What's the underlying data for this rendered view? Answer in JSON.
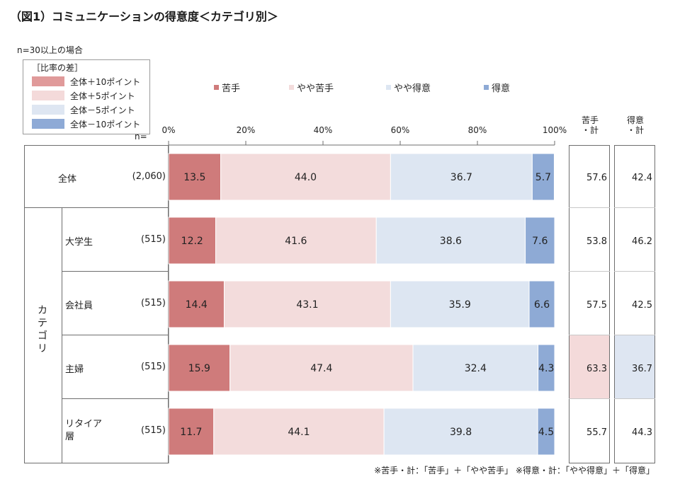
{
  "title": "（図1）コミュニケーションの得意度＜カテゴリ別＞",
  "subtitle": "n=30以上の場合",
  "diff_legend": {
    "header": "［比率の差］",
    "items": [
      {
        "label": "全体＋10ポイント",
        "color": "#e09a9a"
      },
      {
        "label": "全体＋5ポイント",
        "color": "#f4dada"
      },
      {
        "label": "全体－5ポイント",
        "color": "#dee6f2"
      },
      {
        "label": "全体－10ポイント",
        "color": "#8eaad6"
      }
    ]
  },
  "n_header": "n=",
  "sum_headers": {
    "weak": "苦手\n・計",
    "good": "得意\n・計"
  },
  "category_group_label": "カテゴリ",
  "footnote": "※苦手・計：「苦手」＋「やや苦手」 ※得意・計：「やや得意」＋「得意」",
  "chart_data": {
    "type": "bar",
    "orientation": "horizontal",
    "stacked": "percent",
    "xlim": [
      0,
      100
    ],
    "x_ticks": [
      "0%",
      "20%",
      "40%",
      "60%",
      "80%",
      "100%"
    ],
    "legend_position": "top",
    "series": [
      {
        "name": "苦手",
        "color": "#cf7b7b",
        "values": [
          13.5,
          12.2,
          14.4,
          15.9,
          11.7
        ]
      },
      {
        "name": "やや苦手",
        "color": "#f3dcdc",
        "values": [
          44.0,
          41.6,
          43.1,
          47.4,
          44.1
        ]
      },
      {
        "name": "やや得意",
        "color": "#dde6f2",
        "values": [
          36.7,
          38.6,
          35.9,
          32.4,
          39.8
        ]
      },
      {
        "name": "得意",
        "color": "#8eaad5",
        "values": [
          5.7,
          7.6,
          6.6,
          4.3,
          4.5
        ]
      }
    ],
    "categories": [
      {
        "label": "全体",
        "n": "(2,060)",
        "weak_total": 57.6,
        "good_total": 42.4
      },
      {
        "label": "大学生",
        "n": "(515)",
        "weak_total": 53.8,
        "good_total": 46.2
      },
      {
        "label": "会社員",
        "n": "(515)",
        "weak_total": 57.5,
        "good_total": 42.5
      },
      {
        "label": "主婦",
        "n": "(515)",
        "weak_total": 63.3,
        "good_total": 36.7,
        "weak_highlight": "#f4dada",
        "good_highlight": "#dee6f2"
      },
      {
        "label": "リタイア\n層",
        "n": "(515)",
        "weak_total": 55.7,
        "good_total": 44.3
      }
    ]
  }
}
